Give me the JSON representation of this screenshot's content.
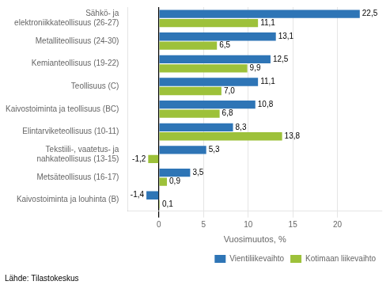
{
  "chart_data": {
    "type": "bar",
    "orientation": "horizontal",
    "categories": [
      "Sähkö- ja\nelektroniikkateollisuus (26-27)",
      "Metalliteollisuus (24-30)",
      "Kemianteollisuus (19-22)",
      "Teollisuus (C)",
      "Kaivostoiminta ja teollisuus (BC)",
      "Elintarviketeollisuus (10-11)",
      "Tekstiili-, vaatetus- ja\nnahkateollisuus (13-15)",
      "Metsäteollisuus (16-17)",
      "Kaivostoiminta ja louhinta (B)"
    ],
    "series": [
      {
        "name": "Vientiliikevaihto",
        "color": "#2E75B6",
        "values": [
          22.5,
          13.1,
          12.5,
          11.1,
          10.8,
          8.3,
          5.3,
          3.5,
          -1.4
        ],
        "value_labels": [
          "22,5",
          "13,1",
          "12,5",
          "11,1",
          "10,8",
          "8,3",
          "5,3",
          "3,5",
          "-1,4"
        ]
      },
      {
        "name": "Kotimaan liikevaihto",
        "color": "#9DC13A",
        "values": [
          11.1,
          6.5,
          9.9,
          7.0,
          6.8,
          13.8,
          -1.2,
          0.9,
          0.1
        ],
        "value_labels": [
          "11,1",
          "6,5",
          "9,9",
          "7,0",
          "6,8",
          "13,8",
          "-1,2",
          "0,9",
          "0,1"
        ]
      }
    ],
    "xlabel": "Vuosimuutos, %",
    "xlim": [
      -3.5,
      25
    ],
    "xticks": [
      0,
      5,
      10,
      15,
      20
    ],
    "grid": true,
    "legend": "lower right",
    "data_labels": true,
    "annotations": [
      "Lähde: Tilastokeskus"
    ]
  }
}
